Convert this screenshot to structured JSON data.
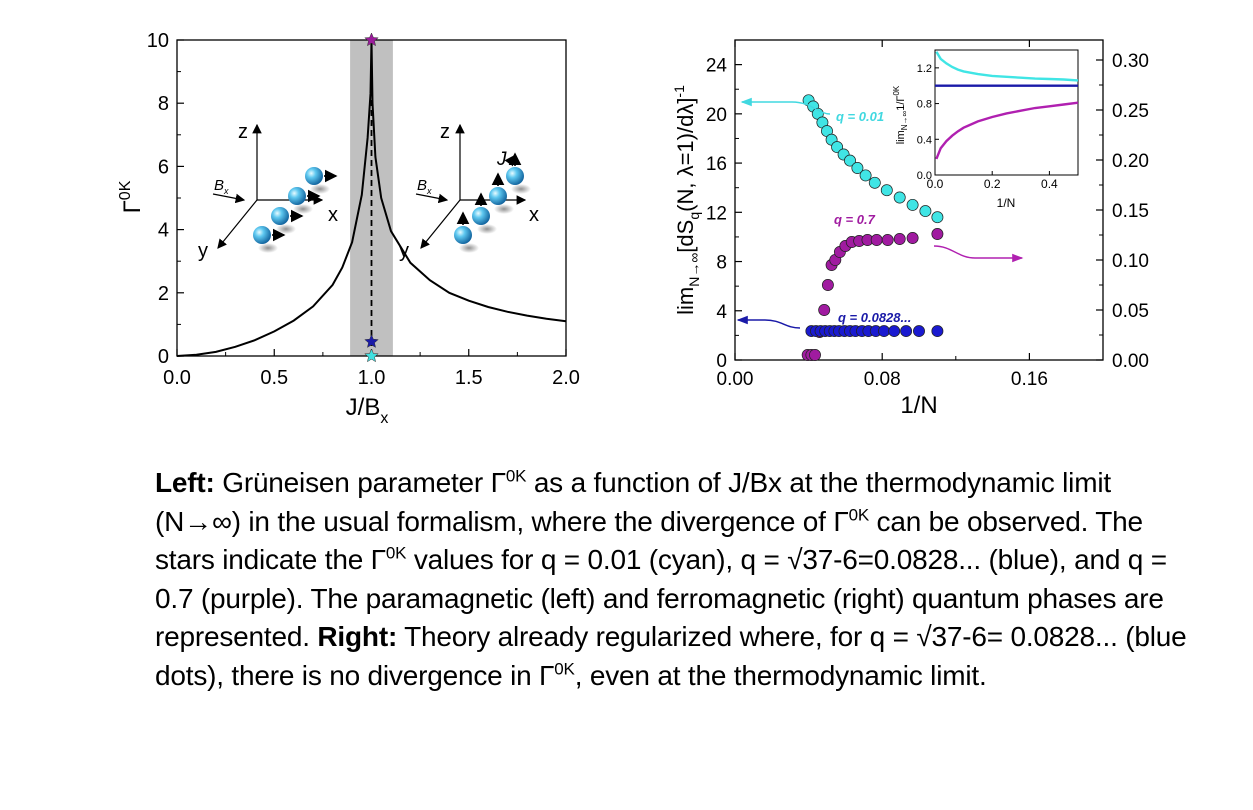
{
  "chart_data": [
    {
      "type": "line",
      "panel": "left",
      "xlabel": "J/B",
      "xlabel_sub": "x",
      "ylabel": "Γ",
      "ylabel_sup": "0K",
      "xlim": [
        0.0,
        2.0
      ],
      "ylim": [
        0,
        10
      ],
      "xticks": [
        "0.0",
        "0.5",
        "1.0",
        "1.5",
        "2.0"
      ],
      "yticks": [
        "0",
        "2",
        "4",
        "6",
        "8",
        "10"
      ],
      "shaded_band_x": [
        0.89,
        1.11
      ],
      "divergence_x": 1.0,
      "series": [
        {
          "x": [
            0.0,
            0.1,
            0.2,
            0.3,
            0.4,
            0.5,
            0.6,
            0.7,
            0.8,
            0.85,
            0.9,
            0.95,
            0.98,
            0.995,
            1.0,
            1.005,
            1.02,
            1.05,
            1.1,
            1.2,
            1.3,
            1.4,
            1.5,
            1.6,
            1.7,
            1.8,
            1.9,
            2.0
          ],
          "y": [
            0.0,
            0.04,
            0.13,
            0.29,
            0.5,
            0.78,
            1.12,
            1.57,
            2.25,
            2.8,
            3.6,
            5.1,
            6.9,
            8.3,
            10.0,
            8.0,
            6.3,
            5.0,
            3.95,
            2.95,
            2.4,
            2.0,
            1.75,
            1.55,
            1.4,
            1.28,
            1.18,
            1.1
          ]
        }
      ],
      "stars": [
        {
          "x": 1.0,
          "y": 10.0,
          "color": "#9b1b9b"
        },
        {
          "x": 1.0,
          "y": 0.45,
          "color": "#1a1aa8"
        },
        {
          "x": 1.0,
          "y": 0.0,
          "color": "#40e0e0"
        }
      ],
      "annotations": {
        "para": {
          "z": "z",
          "x": "x",
          "y": "y",
          "B": "B",
          "Bsub": "x"
        },
        "ferro": {
          "z": "z",
          "x": "x",
          "y": "y",
          "B": "B",
          "Bsub": "x",
          "J": "J"
        }
      }
    },
    {
      "type": "scatter",
      "panel": "right",
      "xlabel": "1/N",
      "ylabel_left": "lim",
      "ylabel_left_sub": "N→∞",
      "ylabel_left_main": "[dS",
      "ylabel_left_sub2": "q",
      "ylabel_left_rest": "(N, λ=1)/dλ]",
      "ylabel_left_sup": "-1",
      "xlim": [
        0.0,
        0.2
      ],
      "ylim_left": [
        0,
        26
      ],
      "ylim_right": [
        0,
        0.32
      ],
      "xticks": [
        "0.00",
        "0.08",
        "0.16"
      ],
      "xtick_values": [
        0.0,
        0.08,
        0.16
      ],
      "yticks_left": [
        "0",
        "4",
        "8",
        "12",
        "16",
        "20",
        "24"
      ],
      "yticks_right": [
        "0.00",
        "0.05",
        "0.10",
        "0.15",
        "0.20",
        "0.25",
        "0.30"
      ],
      "series": [
        {
          "name": "q = 0.01",
          "color": "#40e5e5",
          "axis": "left",
          "x": [
            0.04,
            0.0425,
            0.045,
            0.0475,
            0.05,
            0.0525,
            0.0555,
            0.059,
            0.0625,
            0.0665,
            0.071,
            0.076,
            0.0825,
            0.0895,
            0.0965,
            0.1035,
            0.11
          ],
          "y": [
            21.1,
            20.6,
            20.0,
            19.3,
            18.6,
            17.9,
            17.3,
            16.7,
            16.2,
            15.6,
            15.0,
            14.4,
            13.8,
            13.2,
            12.6,
            12.1,
            11.6
          ]
        },
        {
          "name": "q = 0.7",
          "color": "#a01ba0",
          "axis": "right",
          "x": [
            0.0395,
            0.0415,
            0.0435,
            0.046,
            0.0485,
            0.0505,
            0.0525,
            0.0545,
            0.057,
            0.06,
            0.0635,
            0.0675,
            0.072,
            0.077,
            0.083,
            0.0895,
            0.0965,
            0.11
          ],
          "y": [
            0.005,
            0.005,
            0.005,
            0.028,
            0.05,
            0.075,
            0.095,
            0.1,
            0.108,
            0.114,
            0.118,
            0.119,
            0.12,
            0.12,
            0.12,
            0.121,
            0.122,
            0.126
          ]
        },
        {
          "name": "q = 0.0828...",
          "color": "#1a1ad0",
          "axis": "left",
          "x": [
            0.0415,
            0.044,
            0.0465,
            0.049,
            0.0515,
            0.054,
            0.0565,
            0.0595,
            0.0625,
            0.0655,
            0.069,
            0.0725,
            0.0765,
            0.081,
            0.0865,
            0.093,
            0.1,
            0.11
          ],
          "y": [
            2.35,
            2.35,
            2.35,
            2.35,
            2.35,
            2.35,
            2.35,
            2.35,
            2.35,
            2.35,
            2.35,
            2.35,
            2.35,
            2.35,
            2.35,
            2.35,
            2.35,
            2.35
          ]
        }
      ],
      "series_labels": {
        "cyan": "q = 0.01",
        "purple": "q = 0.7",
        "blue": "q = 0.0828..."
      },
      "inset": {
        "type": "line",
        "xlabel": "1/N",
        "ylabel": "lim",
        "ylabel_sub": "N→∞",
        "ylabel_main": "1/Γ",
        "ylabel_sup": "0K",
        "xlim": [
          0.0,
          0.5
        ],
        "ylim": [
          0.0,
          1.4
        ],
        "xticks": [
          "0.0",
          "0.2",
          "0.4"
        ],
        "xtick_values": [
          0.0,
          0.2,
          0.4
        ],
        "yticks": [
          "0.0",
          "0.4",
          "0.8",
          "1.2"
        ],
        "ytick_values": [
          0.0,
          0.4,
          0.8,
          1.2
        ],
        "series": [
          {
            "color": "#40e5e5",
            "x": [
              0.005,
              0.02,
              0.04,
              0.06,
              0.08,
              0.1,
              0.15,
              0.2,
              0.25,
              0.3,
              0.35,
              0.4,
              0.45,
              0.5
            ],
            "y": [
              1.38,
              1.3,
              1.25,
              1.21,
              1.18,
              1.16,
              1.13,
              1.11,
              1.1,
              1.09,
              1.08,
              1.075,
              1.07,
              1.06
            ]
          },
          {
            "color": "#1a1aa8",
            "x": [
              0.0,
              0.5
            ],
            "y": [
              1.0,
              1.0
            ]
          },
          {
            "color": "#b020b0",
            "x": [
              0.005,
              0.02,
              0.04,
              0.06,
              0.08,
              0.1,
              0.15,
              0.2,
              0.25,
              0.3,
              0.35,
              0.4,
              0.45,
              0.5
            ],
            "y": [
              0.18,
              0.3,
              0.38,
              0.44,
              0.49,
              0.53,
              0.6,
              0.65,
              0.69,
              0.72,
              0.75,
              0.77,
              0.79,
              0.81
            ]
          }
        ]
      }
    }
  ],
  "caption": {
    "left_label": "Left:",
    "p1": " Grüneisen parameter Γ",
    "sup1": "0K",
    "p2": " as a function of J/Bx at the thermodynamic limit (N→∞) in the usual formalism, where the divergence of Γ",
    "sup2": "0K",
    "p3": " can be observed. The stars indicate the Γ",
    "sup3": "0K",
    "p4": " values for q = 0.01 (cyan), q = √37-6=0.0828... (blue), and q = 0.7 (purple). The paramagnetic (left) and ferromagnetic (right) quantum phases are represented. ",
    "right_label": "Right:",
    "p5": " Theory already regularized where, for q = √37-6= 0.0828... (blue dots), there is no divergence in Γ",
    "sup4": "0K",
    "p6": ", even at the thermodynamic limit."
  }
}
